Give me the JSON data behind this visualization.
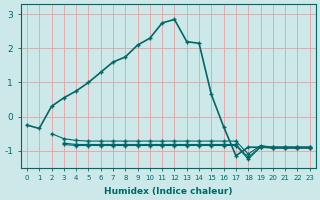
{
  "bg_color": "#cce8e8",
  "grid_color": "#e8a0a0",
  "line_color": "#006868",
  "x_label": "Humidex (Indice chaleur)",
  "xlim": [
    -0.5,
    23.5
  ],
  "ylim": [
    -1.5,
    3.3
  ],
  "yticks": [
    -1,
    0,
    1,
    2,
    3
  ],
  "xticks": [
    0,
    1,
    2,
    3,
    4,
    5,
    6,
    7,
    8,
    9,
    10,
    11,
    12,
    13,
    14,
    15,
    16,
    17,
    18,
    19,
    20,
    21,
    22,
    23
  ],
  "series1": {
    "x": [
      0,
      1,
      2,
      3,
      4,
      5,
      6,
      7,
      8,
      9,
      10,
      11,
      12,
      13,
      14,
      15,
      16,
      17,
      18,
      19,
      20,
      21,
      22,
      23
    ],
    "y": [
      -0.25,
      -0.35,
      0.3,
      0.55,
      0.75,
      1.0,
      1.3,
      1.6,
      1.75,
      2.1,
      2.3,
      2.75,
      2.85,
      2.2,
      2.15,
      0.65,
      -0.3,
      -1.15,
      -0.9,
      -0.9,
      -0.9,
      -0.9,
      -0.9,
      -0.9
    ]
  },
  "series2": {
    "x": [
      2,
      3,
      4,
      5,
      6,
      7,
      8,
      9,
      10,
      11,
      12,
      13,
      14,
      15,
      16,
      17,
      18,
      19,
      20,
      21,
      22,
      23
    ],
    "y": [
      -0.5,
      -0.65,
      -0.7,
      -0.72,
      -0.72,
      -0.72,
      -0.72,
      -0.72,
      -0.72,
      -0.72,
      -0.72,
      -0.72,
      -0.72,
      -0.72,
      -0.72,
      -0.72,
      -1.1,
      -0.85,
      -0.9,
      -0.9,
      -0.9,
      -0.9
    ]
  },
  "series3": {
    "x": [
      3,
      4,
      5,
      6,
      7,
      8,
      9,
      10,
      11,
      12,
      13,
      14,
      15,
      16,
      17,
      18,
      19,
      20,
      21,
      22,
      23
    ],
    "y": [
      -0.78,
      -0.82,
      -0.82,
      -0.82,
      -0.82,
      -0.82,
      -0.82,
      -0.82,
      -0.82,
      -0.82,
      -0.82,
      -0.82,
      -0.82,
      -0.82,
      -0.82,
      -1.2,
      -0.88,
      -0.92,
      -0.92,
      -0.92,
      -0.92
    ]
  },
  "series4": {
    "x": [
      3,
      4,
      5,
      6,
      7,
      8,
      9,
      10,
      11,
      12,
      13,
      14,
      15,
      16,
      17,
      18,
      19,
      20,
      21,
      22,
      23
    ],
    "y": [
      -0.82,
      -0.85,
      -0.85,
      -0.85,
      -0.85,
      -0.85,
      -0.85,
      -0.85,
      -0.85,
      -0.85,
      -0.85,
      -0.85,
      -0.85,
      -0.85,
      -0.85,
      -1.25,
      -0.9,
      -0.93,
      -0.93,
      -0.93,
      -0.93
    ]
  }
}
